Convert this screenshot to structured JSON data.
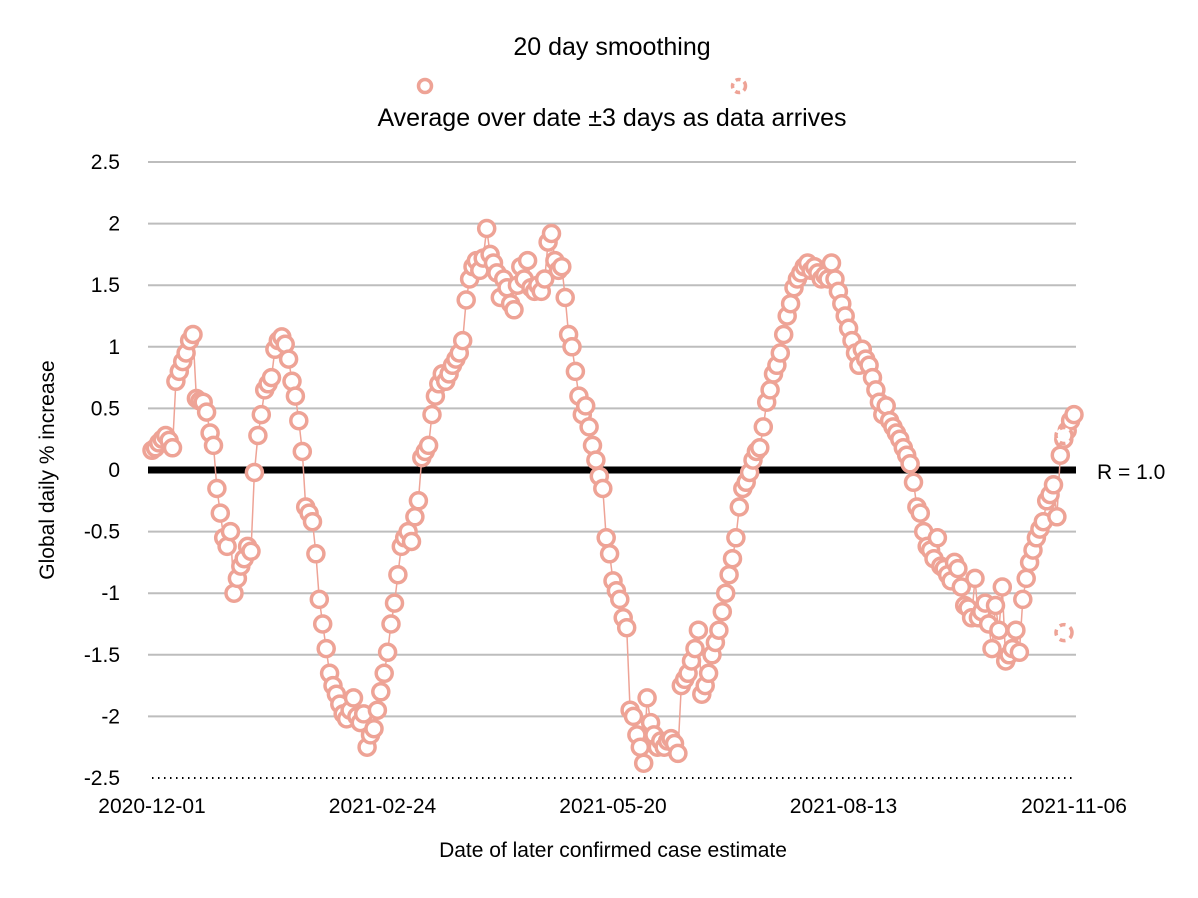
{
  "chart_data": {
    "type": "scatter",
    "title": "",
    "xlabel": "Date of later confirmed case estimate",
    "ylabel": "Global daily % increase",
    "x_range": [
      "2020-12-01",
      "2021-11-06"
    ],
    "x_ticks": [
      "2020-12-01",
      "2021-02-24",
      "2021-05-20",
      "2021-08-13",
      "2021-11-06"
    ],
    "ylim": [
      -2.5,
      2.5
    ],
    "y_ticks": [
      "2.5",
      "2",
      "1.5",
      "1",
      "0.5",
      "0",
      "-0.5",
      "-1",
      "-1.5",
      "-2",
      "-2.5"
    ],
    "grid": true,
    "legend_position": "top",
    "reference_line": {
      "y": 0,
      "label": "R = 1.0"
    },
    "colors": {
      "series": "#eea396",
      "reference": "#000000",
      "grid": "#bdbdbd"
    },
    "series": [
      {
        "name": "20 day smoothing",
        "marker": "open-circle-solid",
        "style": "line-markers",
        "x_start": "2020-12-01",
        "values": [
          0.16,
          0.18,
          0.22,
          0.25,
          0.28,
          0.24,
          0.18,
          0.72,
          0.8,
          0.88,
          0.95,
          1.05,
          1.1,
          0.58,
          0.56,
          0.55,
          0.47,
          0.3,
          0.2,
          -0.15,
          -0.35,
          -0.55,
          -0.62,
          -0.5,
          -1.0,
          -0.88,
          -0.78,
          -0.72,
          -0.62,
          -0.66,
          -0.02,
          0.28,
          0.45,
          0.65,
          0.7,
          0.75,
          0.98,
          1.05,
          1.08,
          1.02,
          0.9,
          0.72,
          0.6,
          0.4,
          0.15,
          -0.3,
          -0.35,
          -0.42,
          -0.68,
          -1.05,
          -1.25,
          -1.45,
          -1.65,
          -1.75,
          -1.82,
          -1.9,
          -1.98,
          -2.02,
          -1.95,
          -1.85,
          -2.0,
          -2.05,
          -1.98,
          -2.25,
          -2.15,
          -2.1,
          -1.95,
          -1.8,
          -1.65,
          -1.48,
          -1.25,
          -1.08,
          -0.85,
          -0.62,
          -0.55,
          -0.5,
          -0.58,
          -0.38,
          -0.25,
          0.1,
          0.15,
          0.2,
          0.45,
          0.6,
          0.7,
          0.78,
          0.72,
          0.78,
          0.85,
          0.9,
          0.95,
          1.05,
          1.38,
          1.55,
          1.65,
          1.7,
          1.62,
          1.72,
          1.96,
          1.75,
          1.68,
          1.6,
          1.4,
          1.55,
          1.48,
          1.35,
          1.3,
          1.5,
          1.65,
          1.55,
          1.7,
          1.48,
          1.45,
          1.5,
          1.45,
          1.55,
          1.85,
          1.92,
          1.7,
          1.62,
          1.65,
          1.4,
          1.1,
          1.0,
          0.8,
          0.6,
          0.45,
          0.52,
          0.35,
          0.2,
          0.08,
          -0.05,
          -0.15,
          -0.55,
          -0.68,
          -0.9,
          -0.98,
          -1.05,
          -1.2,
          -1.28,
          -1.95,
          -2.0,
          -2.15,
          -2.25,
          -2.38,
          -1.85,
          -2.05,
          -2.15,
          -2.25,
          -2.2,
          -2.25,
          -2.2,
          -2.18,
          -2.22,
          -2.3,
          -1.75,
          -1.7,
          -1.65,
          -1.55,
          -1.45,
          -1.3,
          -1.82,
          -1.75,
          -1.65,
          -1.5,
          -1.4,
          -1.3,
          -1.15,
          -1.0,
          -0.85,
          -0.72,
          -0.55,
          -0.3,
          -0.15,
          -0.1,
          -0.02,
          0.08,
          0.15,
          0.18,
          0.35,
          0.55,
          0.65,
          0.78,
          0.85,
          0.95,
          1.1,
          1.25,
          1.35,
          1.48,
          1.55,
          1.6,
          1.65,
          1.68,
          1.62,
          1.65,
          1.6,
          1.55,
          1.58,
          1.55,
          1.68,
          1.55,
          1.45,
          1.35,
          1.25,
          1.15,
          1.05,
          0.95,
          0.85,
          0.98,
          0.9,
          0.85,
          0.75,
          0.65,
          0.55,
          0.45,
          0.52,
          0.4,
          0.35,
          0.3,
          0.25,
          0.18,
          0.12,
          0.05,
          -0.1,
          -0.3,
          -0.35,
          -0.5,
          -0.62,
          -0.65,
          -0.72,
          -0.55,
          -0.78,
          -0.8,
          -0.85,
          -0.9,
          -0.75,
          -0.8,
          -0.95,
          -1.1,
          -1.12,
          -1.2,
          -0.88,
          -1.2,
          -1.15,
          -1.08,
          -1.25,
          -1.45,
          -1.1,
          -1.3,
          -0.95,
          -1.55,
          -1.5,
          -1.45,
          -1.3,
          -1.48,
          -1.05,
          -0.88,
          -0.75,
          -0.65,
          -0.55,
          -0.48,
          -0.42,
          -0.25,
          -0.2,
          -0.12,
          -0.38,
          0.12,
          0.25,
          0.32,
          0.4,
          0.45
        ]
      },
      {
        "name": "Average over date ±3 days as data arrives",
        "marker": "open-circle-dashed",
        "style": "markers",
        "points": [
          {
            "x": "2021-11-06",
            "y": 0.28
          },
          {
            "x": "2021-11-06",
            "y": -1.32
          }
        ]
      }
    ]
  }
}
